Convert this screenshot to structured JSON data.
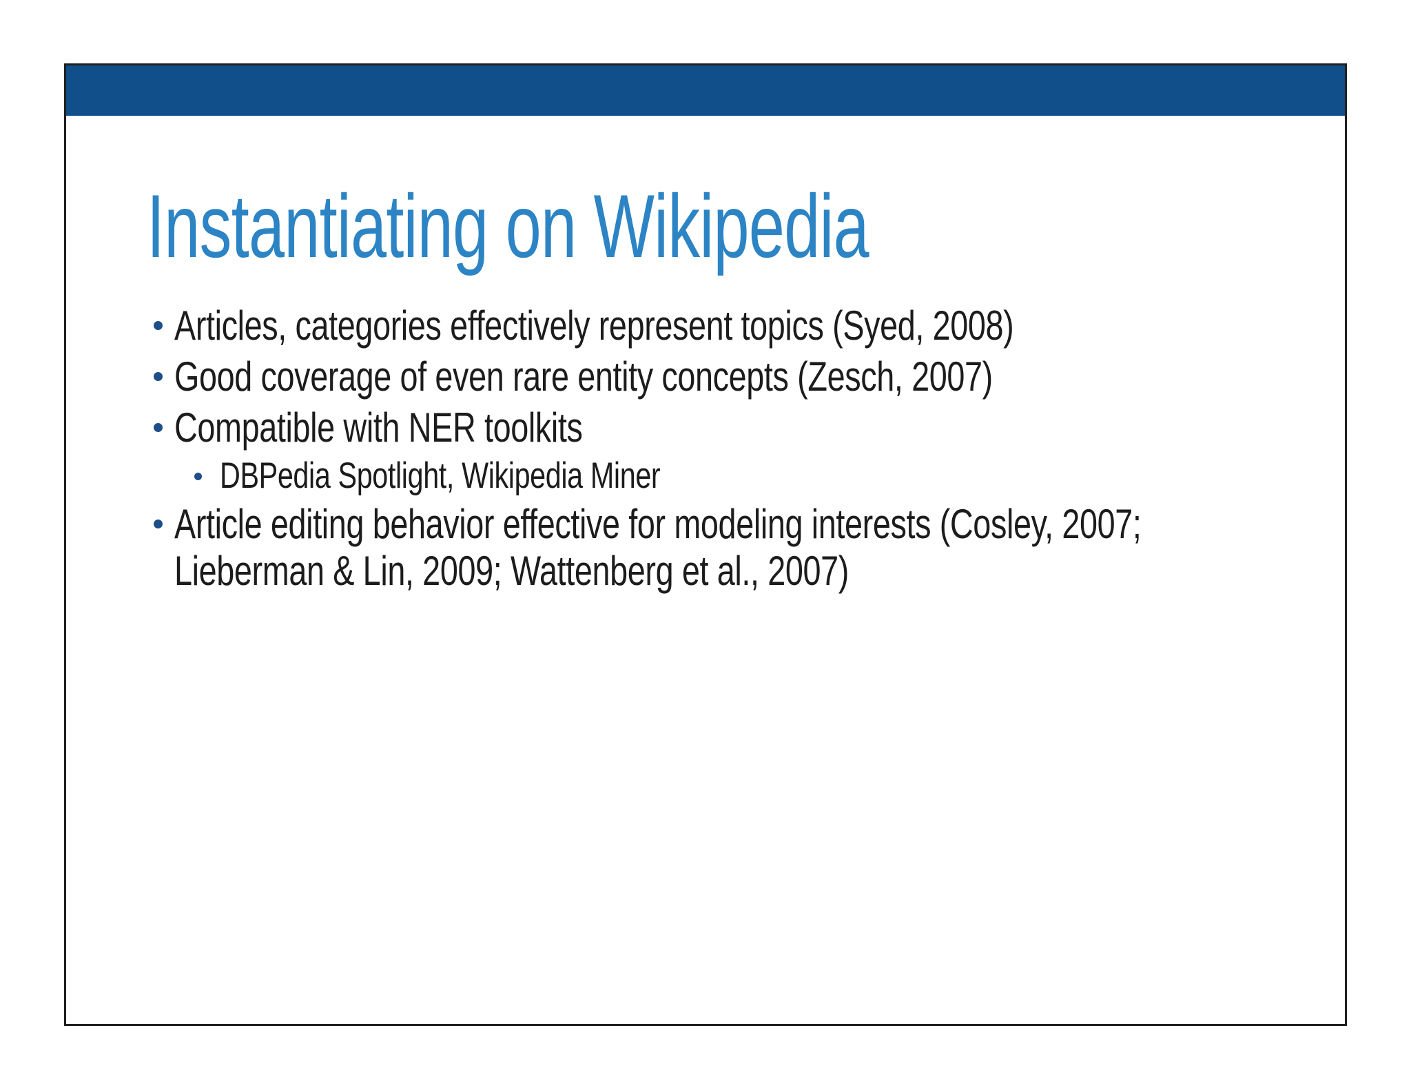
{
  "slide": {
    "title": "Instantiating on Wikipedia",
    "bullets": [
      {
        "level": 1,
        "text": "Articles, categories effectively represent topics (Syed, 2008)"
      },
      {
        "level": 1,
        "text": "Good coverage of even rare entity concepts (Zesch, 2007)"
      },
      {
        "level": 1,
        "text": "Compatible with NER toolkits"
      },
      {
        "level": 2,
        "text": "DBPedia Spotlight, Wikipedia Miner"
      },
      {
        "level": 1,
        "text": "Article editing behavior effective for modeling interests (Cosley, 2007; Lieberman & Lin, 2009; Wattenberg et al., 2007)"
      }
    ],
    "colors": {
      "header_bar": "#114F8B",
      "title": "#2C84C4",
      "body_text": "#1C1C1C",
      "bullet_dot": "#1D4E89",
      "slide_border": "#1F1F1F"
    }
  }
}
